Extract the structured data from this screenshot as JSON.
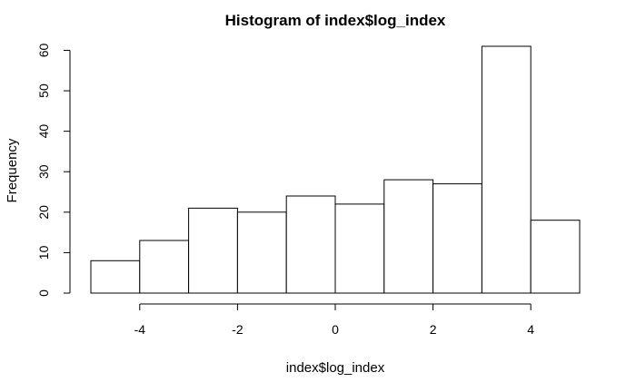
{
  "chart_data": {
    "type": "bar",
    "title": "Histogram of index$log_index",
    "xlabel": "index$log_index",
    "ylabel": "Frequency",
    "bins": [
      {
        "x0": -5,
        "x1": -4,
        "count": 8
      },
      {
        "x0": -4,
        "x1": -3,
        "count": 13
      },
      {
        "x0": -3,
        "x1": -2,
        "count": 21
      },
      {
        "x0": -2,
        "x1": -1,
        "count": 20
      },
      {
        "x0": -1,
        "x1": 0,
        "count": 24
      },
      {
        "x0": 0,
        "x1": 1,
        "count": 22
      },
      {
        "x0": 1,
        "x1": 2,
        "count": 28
      },
      {
        "x0": 2,
        "x1": 3,
        "count": 27
      },
      {
        "x0": 3,
        "x1": 4,
        "count": 61
      },
      {
        "x0": 4,
        "x1": 5,
        "count": 18
      }
    ],
    "x_ticks": [
      -4,
      -2,
      0,
      2,
      4
    ],
    "x_tick_labels": [
      "-4",
      "-2",
      "0",
      "2",
      "4"
    ],
    "y_ticks": [
      0,
      10,
      20,
      30,
      40,
      50,
      60
    ],
    "y_tick_labels": [
      "0",
      "10",
      "20",
      "30",
      "40",
      "50",
      "60"
    ],
    "xlim": [
      -5,
      5
    ],
    "ylim": [
      0,
      61
    ],
    "grid": false,
    "colors": {
      "bar_fill": "#ffffff",
      "bar_stroke": "#000000"
    }
  }
}
